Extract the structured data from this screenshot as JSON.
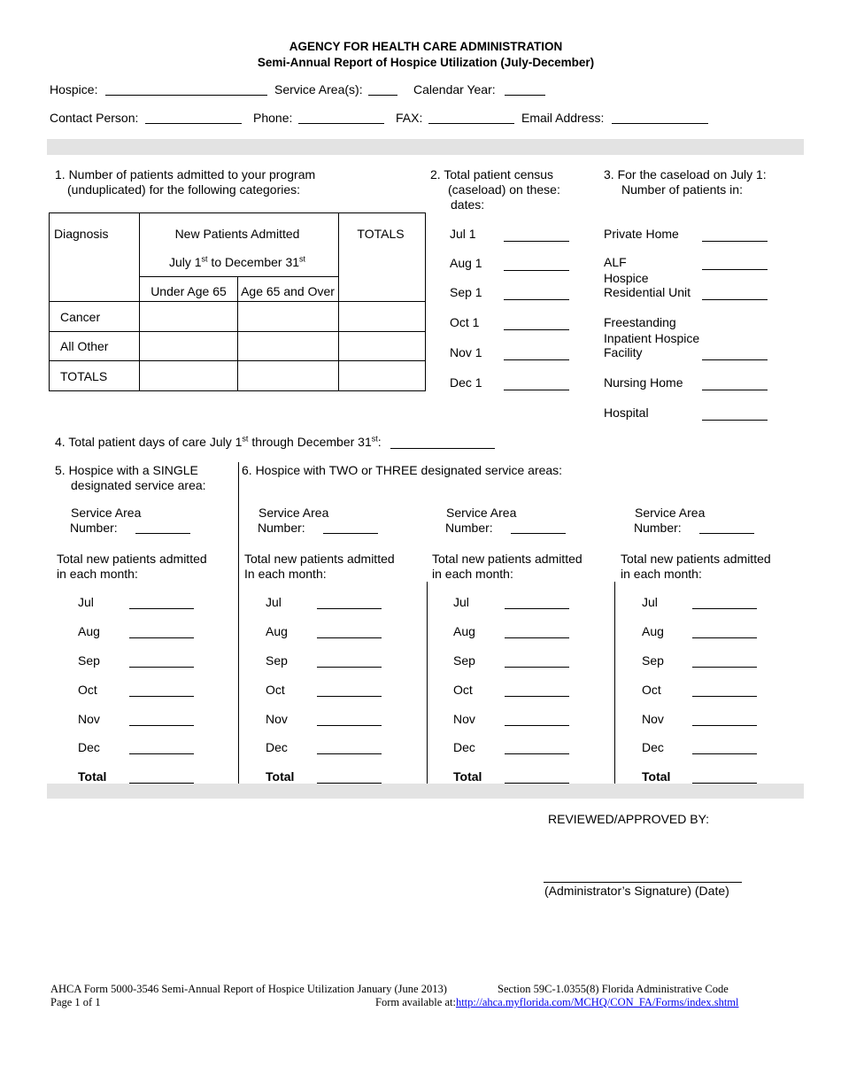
{
  "header": {
    "agency": "AGENCY FOR HEALTH CARE ADMINISTRATION",
    "title": "Semi-Annual Report of Hospice Utilization (July-December)"
  },
  "fields": {
    "hospice": "Hospice:",
    "service_areas": "Service Area(s):",
    "calendar_year": "Calendar Year:",
    "contact": "Contact Person:",
    "phone": "Phone:",
    "fax": "FAX:",
    "email": "Email Address:"
  },
  "q1": {
    "line1": "1. Number of patients admitted to your program",
    "line2": "(unduplicated) for the following categories:",
    "table": {
      "diagnosis": "Diagnosis",
      "new_patients": "New Patients Admitted",
      "totals": "TOTALS",
      "period_a": "July 1",
      "period_sup1": "st",
      "period_b": " to December 31",
      "period_sup2": "st",
      "under65": "Under Age 65",
      "over65": "Age 65 and Over",
      "rows": [
        "Cancer",
        "All Other",
        "TOTALS"
      ]
    }
  },
  "q2": {
    "line1": "2. Total patient census",
    "line2": "(caseload) on these:",
    "line3": "dates:",
    "dates": [
      "Jul 1",
      "Aug 1",
      "Sep 1",
      "Oct 1",
      "Nov 1",
      "Dec 1"
    ]
  },
  "q3": {
    "line1": "3. For the caseload on July 1:",
    "line2": "Number of patients in:",
    "private_home": "Private Home",
    "alf": "ALF",
    "hospice_res_1": "Hospice",
    "hospice_res_2": "Residential Unit",
    "free_1": "Freestanding",
    "free_2": "Inpatient Hospice",
    "free_3": "Facility",
    "nursing_home": "Nursing Home",
    "hospital": "Hospital"
  },
  "q4": {
    "a": "4. Total patient days of care July 1",
    "sup1": "st",
    "b": " through December 31",
    "sup2": "st",
    "c": ":"
  },
  "q5": {
    "line1": "5. Hospice with a SINGLE",
    "line2": "designated service area:"
  },
  "q6": {
    "line1": "6. Hospice with TWO or THREE designated service areas:"
  },
  "area": {
    "sa1": "Service Area",
    "sa2": "Number:",
    "tn1": "Total new patients admitted",
    "tn2a": "in each month:",
    "tn2b": "In each month:"
  },
  "months": [
    "Jul",
    "Aug",
    "Sep",
    "Oct",
    "Nov",
    "Dec",
    "Total"
  ],
  "review": {
    "label": "REVIEWED/APPROVED BY:",
    "signature": "(Administrator’s Signature) (Date)"
  },
  "footer": {
    "form": "AHCA Form 5000-3546 Semi-Annual Report of Hospice Utilization January (June 2013)",
    "section": "Section 59C-1.0355(8) Florida Administrative Code",
    "page": "Page 1 of 1",
    "available": "Form available at:",
    "url": "http://ahca.myflorida.com/MCHQ/CON_FA/Forms/index.shtml"
  }
}
